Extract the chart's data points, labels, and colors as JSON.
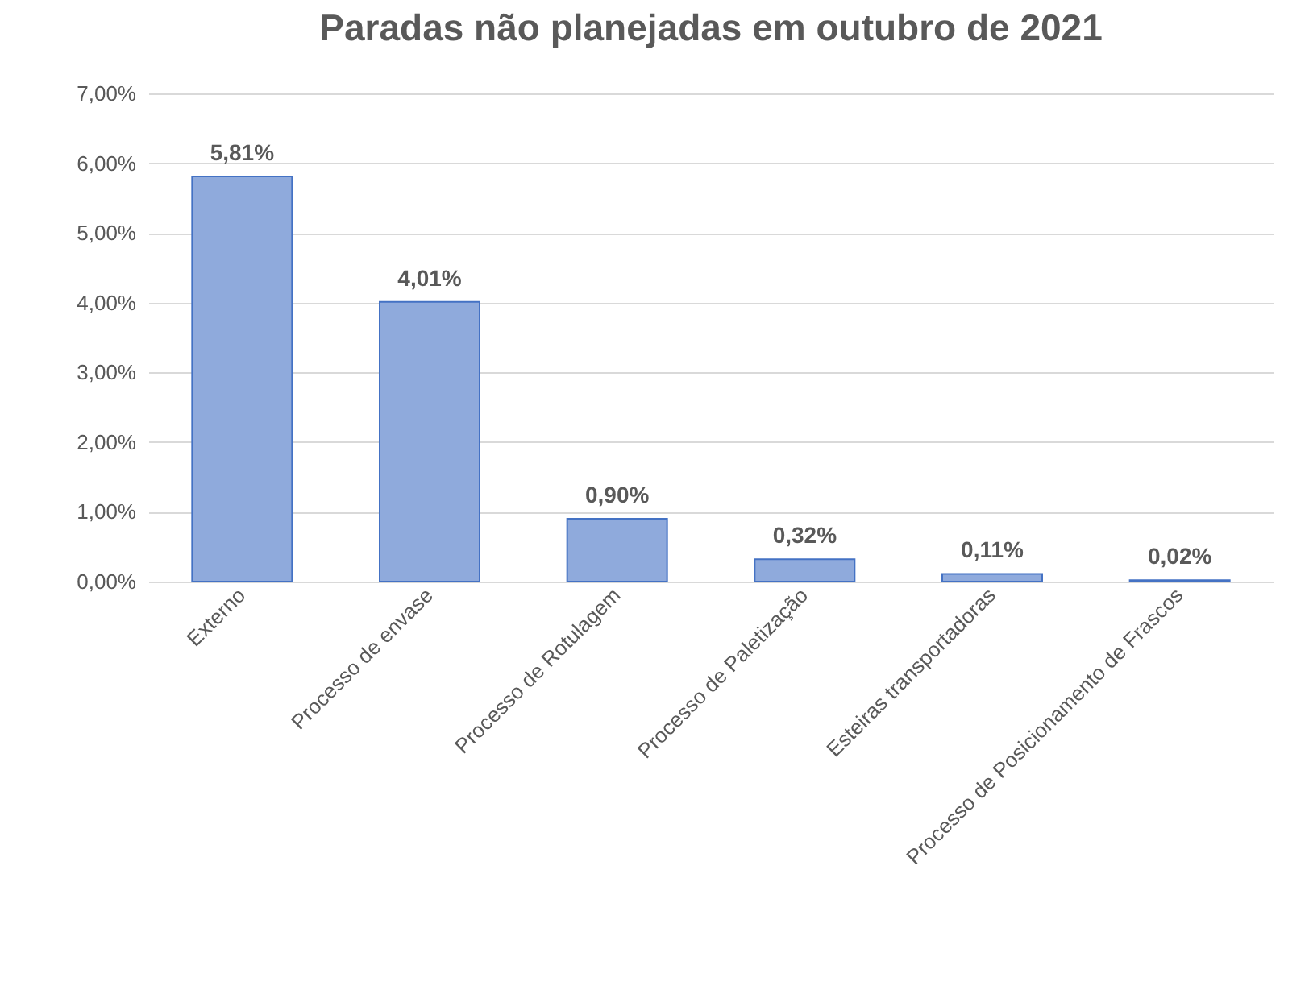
{
  "chart_data": {
    "type": "bar",
    "title": "Paradas não planejadas em outubro de 2021",
    "categories": [
      "Externo",
      "Processo de envase",
      "Processo de Rotulagem",
      "Processo de Paletização",
      "Esteiras transportadoras",
      "Processo de Posicionamento de Frascos"
    ],
    "values": [
      5.81,
      4.01,
      0.9,
      0.32,
      0.11,
      0.02
    ],
    "value_labels": [
      "5,81%",
      "4,01%",
      "0,90%",
      "0,32%",
      "0,11%",
      "0,02%"
    ],
    "color": "#8faadc",
    "ylim": [
      0,
      7
    ],
    "yticks": [
      {
        "value": 0,
        "label": "0,00%"
      },
      {
        "value": 1,
        "label": "1,00%"
      },
      {
        "value": 2,
        "label": "2,00%"
      },
      {
        "value": 3,
        "label": "3,00%"
      },
      {
        "value": 4,
        "label": "4,00%"
      },
      {
        "value": 5,
        "label": "5,00%"
      },
      {
        "value": 6,
        "label": "6,00%"
      },
      {
        "value": 7,
        "label": "7,00%"
      }
    ],
    "grid": "y"
  }
}
